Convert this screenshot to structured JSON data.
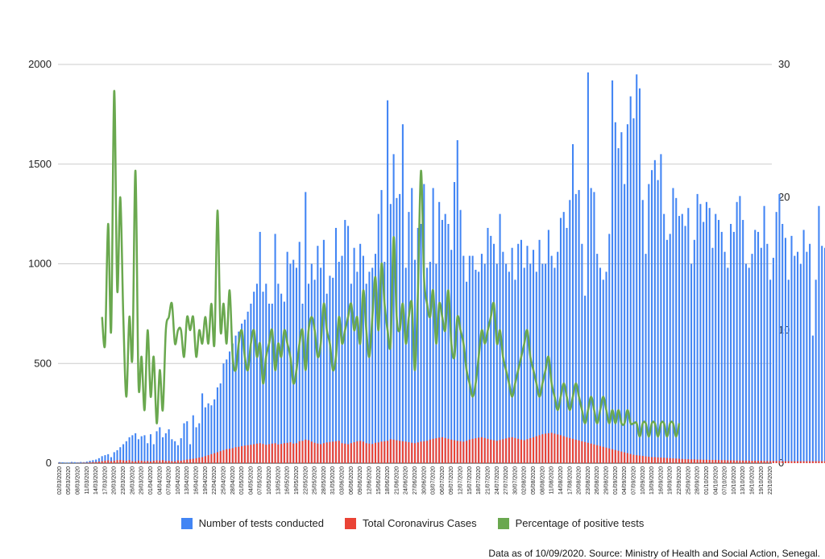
{
  "chart_data": {
    "type": "bar+line",
    "x_start": "2020-03-02",
    "x_end": "2020-10-22",
    "x_tick_labels": [
      "02/03/2020",
      "05/03/2020",
      "08/03/2020",
      "11/03/2020",
      "14/03/2020",
      "17/03/2020",
      "20/03/2020",
      "23/03/2020",
      "26/03/2020",
      "29/03/2020",
      "01/04/2020",
      "04/04/2020",
      "07/04/2020",
      "10/04/2020",
      "13/04/2020",
      "16/04/2020",
      "19/04/2020",
      "22/04/2020",
      "25/04/2020",
      "28/04/2020",
      "01/05/2020",
      "04/05/2020",
      "07/05/2020",
      "10/05/2020",
      "13/05/2020",
      "16/05/2020",
      "19/05/2020",
      "22/05/2020",
      "25/05/2020",
      "28/05/2020",
      "31/05/2020",
      "03/06/2020",
      "06/06/2020",
      "09/06/2020",
      "12/06/2020",
      "15/06/2020",
      "18/06/2020",
      "21/06/2020",
      "24/06/2020",
      "27/06/2020",
      "30/06/2020",
      "03/07/2020",
      "06/07/2020",
      "09/07/2020",
      "12/07/2020",
      "15/07/2020",
      "18/07/2020",
      "21/07/2020",
      "24/07/2020",
      "27/07/2020",
      "30/07/2020",
      "02/08/2020",
      "05/08/2020",
      "08/08/2020",
      "11/08/2020",
      "14/08/2020",
      "17/08/2020",
      "20/08/2020",
      "23/08/2020",
      "26/08/2020",
      "29/08/2020",
      "01/09/2020",
      "04/09/2020",
      "07/09/2020",
      "10/09/2020",
      "13/09/2020",
      "16/09/2020",
      "19/09/2020",
      "22/09/2020",
      "25/09/2020",
      "28/09/2020",
      "01/10/2020",
      "04/10/2020",
      "07/10/2020",
      "10/10/2020",
      "13/10/2020",
      "16/10/2020",
      "19/10/2020",
      "22/10/2020"
    ],
    "y_left": {
      "ticks": [
        "0",
        "500",
        "1000",
        "1500",
        "2000"
      ],
      "range": [
        0,
        2000
      ]
    },
    "y_right": {
      "ticks": [
        "0",
        "10",
        "20",
        "30"
      ],
      "range": [
        0,
        30
      ]
    },
    "grid": "horizontal",
    "legend_position": "bottom",
    "series": [
      {
        "name": "Number of tests conducted",
        "axis": "left",
        "kind": "bar",
        "color": "#4285F4",
        "values": [
          5,
          4,
          3,
          3,
          6,
          5,
          4,
          6,
          5,
          8,
          12,
          15,
          18,
          25,
          35,
          40,
          45,
          30,
          55,
          65,
          80,
          95,
          110,
          130,
          140,
          150,
          120,
          135,
          140,
          100,
          145,
          95,
          160,
          180,
          130,
          150,
          170,
          120,
          110,
          90,
          125,
          200,
          210,
          95,
          240,
          180,
          200,
          350,
          280,
          300,
          290,
          320,
          380,
          400,
          500,
          520,
          560,
          600,
          640,
          660,
          700,
          720,
          760,
          800,
          860,
          900,
          1160,
          860,
          900,
          800,
          800,
          1150,
          900,
          850,
          810,
          1060,
          1000,
          1020,
          980,
          1110,
          800,
          1360,
          900,
          1000,
          920,
          1090,
          980,
          1120,
          850,
          940,
          930,
          1180,
          1010,
          1040,
          1220,
          1190,
          900,
          1080,
          960,
          1100,
          1040,
          900,
          960,
          980,
          1050,
          1250,
          1370,
          1010,
          1820,
          1300,
          1550,
          1330,
          1350,
          1700,
          980,
          1260,
          1380,
          1020,
          1180,
          1200,
          1400,
          980,
          1010,
          1380,
          1000,
          1310,
          1220,
          1250,
          1200,
          1070,
          1410,
          1620,
          1270,
          1040,
          910,
          1040,
          1040,
          970,
          960,
          1050,
          1000,
          1180,
          1140,
          1100,
          1000,
          1250,
          1060,
          1000,
          960,
          1080,
          920,
          1100,
          1120,
          980,
          1090,
          1000,
          1070,
          960,
          1120,
          1000,
          1000,
          1170,
          1040,
          980,
          1060,
          1230,
          1260,
          1180,
          1320,
          1600,
          1350,
          1370,
          1100,
          840,
          1960,
          1380,
          1360,
          1050,
          980,
          920,
          960,
          1150,
          1920,
          1710,
          1580,
          1660,
          1400,
          1700,
          1840,
          1730,
          1950,
          1880,
          1320,
          1050,
          1400,
          1470,
          1520,
          1420,
          1550,
          1250,
          1120,
          1150,
          1380,
          1330,
          1240,
          1250,
          1190,
          1280,
          1000,
          1120,
          1350,
          1300,
          1210,
          1310,
          1280,
          1080,
          1250,
          1220,
          1160,
          1060,
          980,
          1200,
          1160,
          1310,
          1340,
          1220,
          1000,
          980,
          1050,
          1170,
          1160,
          1080,
          1290,
          1100,
          920,
          1030,
          1260,
          1350,
          1200,
          1130,
          920,
          1140,
          1040,
          1060,
          1000,
          1170,
          1060,
          1100,
          640,
          920,
          1290,
          1090,
          1080,
          1010,
          1040,
          820,
          1010,
          900
        ]
      },
      {
        "name": "Total Coronavirus Cases",
        "axis": "left",
        "kind": "bar",
        "color": "#EA4335",
        "values": [
          1,
          0,
          0,
          0,
          1,
          0,
          1,
          1,
          2,
          2,
          4,
          5,
          6,
          8,
          10,
          12,
          14,
          10,
          12,
          15,
          16,
          14,
          12,
          15,
          10,
          9,
          13,
          12,
          10,
          11,
          9,
          12,
          14,
          13,
          15,
          11,
          12,
          10,
          9,
          14,
          12,
          15,
          18,
          20,
          22,
          25,
          28,
          30,
          35,
          40,
          45,
          50,
          55,
          60,
          65,
          70,
          72,
          75,
          80,
          82,
          85,
          88,
          90,
          92,
          95,
          98,
          100,
          96,
          92,
          95,
          98,
          100,
          94,
          96,
          100,
          102,
          105,
          98,
          100,
          110,
          112,
          118,
          115,
          108,
          102,
          98,
          95,
          100,
          104,
          106,
          108,
          110,
          112,
          100,
          98,
          95,
          100,
          105,
          110,
          112,
          108,
          100,
          98,
          96,
          102,
          104,
          108,
          110,
          112,
          120,
          118,
          115,
          112,
          110,
          108,
          105,
          102,
          100,
          104,
          108,
          110,
          112,
          118,
          122,
          125,
          128,
          130,
          126,
          122,
          118,
          115,
          112,
          110,
          108,
          112,
          118,
          122,
          125,
          128,
          130,
          126,
          122,
          118,
          115,
          112,
          116,
          120,
          124,
          128,
          130,
          126,
          122,
          118,
          115,
          120,
          125,
          130,
          135,
          140,
          145,
          148,
          150,
          152,
          148,
          144,
          140,
          135,
          130,
          126,
          122,
          118,
          114,
          110,
          106,
          102,
          98,
          94,
          90,
          86,
          82,
          78,
          74,
          70,
          66,
          62,
          58,
          54,
          50,
          46,
          42,
          40,
          38,
          36,
          34,
          32,
          30,
          30,
          29,
          28,
          27,
          26,
          25,
          24,
          23,
          22,
          21,
          20,
          20,
          19,
          19,
          18,
          18,
          17,
          17,
          16,
          16,
          16,
          15,
          15,
          15,
          14,
          14,
          14,
          13,
          13,
          13,
          13,
          12,
          12,
          12,
          12,
          12,
          11,
          11,
          11,
          11,
          11,
          11,
          10,
          10,
          10,
          10,
          10,
          10,
          10,
          10,
          10,
          10,
          10,
          10,
          10,
          10,
          10,
          10,
          10,
          10,
          10,
          10,
          10,
          10,
          10,
          10,
          10,
          10,
          10,
          10,
          10,
          10,
          10,
          10,
          10,
          10
        ]
      },
      {
        "name": "Percentage of positive tests",
        "axis": "right",
        "kind": "line",
        "color": "#6AA84F",
        "start_date": "2020-03-16",
        "values": [
          11,
          9,
          18,
          10,
          28,
          13,
          20,
          11,
          5,
          11,
          8,
          22,
          6,
          8,
          4,
          10,
          5,
          8,
          3,
          7,
          4,
          10,
          11,
          12,
          9,
          10,
          10,
          8,
          11,
          10,
          11,
          8,
          10,
          9,
          11,
          9,
          12,
          9,
          19,
          10,
          12,
          9,
          13,
          8,
          7,
          9,
          10,
          8,
          7,
          9,
          10,
          8,
          9,
          6,
          8,
          9,
          10,
          7,
          9,
          8,
          10,
          9,
          8,
          6,
          7,
          9,
          10,
          7,
          10,
          11,
          10,
          8,
          9,
          12,
          10,
          9,
          7,
          8,
          11,
          9,
          10,
          11,
          12,
          10,
          11,
          9,
          13,
          10,
          8,
          11,
          14,
          10,
          15,
          12,
          10,
          9,
          17,
          11,
          10,
          12,
          9,
          11,
          12,
          7,
          13,
          22,
          14,
          12,
          11,
          13,
          9,
          12,
          11,
          10,
          13,
          9,
          8,
          11,
          10,
          9,
          7,
          6,
          5,
          6,
          8,
          10,
          9,
          10,
          11,
          12,
          9,
          10,
          8,
          7,
          6,
          5,
          6,
          7,
          8,
          9,
          10,
          8,
          7,
          6,
          5,
          6,
          7,
          8,
          6,
          5,
          4,
          5,
          6,
          5,
          4,
          5,
          6,
          5,
          4,
          3,
          4,
          5,
          4,
          3,
          4,
          5,
          4,
          3,
          4,
          3,
          4,
          3,
          3,
          4,
          3,
          3,
          3,
          2,
          3,
          3,
          2,
          3,
          3,
          2,
          3,
          3,
          2,
          3,
          3,
          2,
          3
        ]
      }
    ],
    "footnote": "Data as of 10/09/2020. Source: Ministry of Health and Social Action, Senegal."
  }
}
